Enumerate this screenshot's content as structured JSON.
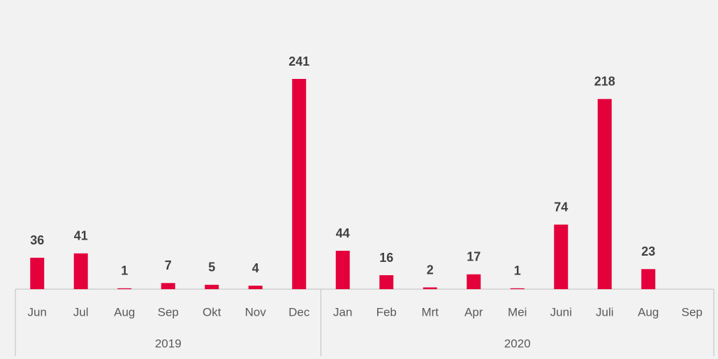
{
  "chart_data": {
    "type": "bar",
    "color": "#e4003b",
    "groups": [
      {
        "name": "2019",
        "categories": [
          "Jun",
          "Jul",
          "Aug",
          "Sep",
          "Okt",
          "Nov",
          "Dec"
        ],
        "values": [
          36,
          41,
          1,
          7,
          5,
          4,
          241
        ]
      },
      {
        "name": "2020",
        "categories": [
          "Jan",
          "Feb",
          "Mrt",
          "Apr",
          "Mei",
          "Juni",
          "Juli",
          "Aug",
          "Sep"
        ],
        "values": [
          44,
          16,
          2,
          17,
          1,
          74,
          218,
          23,
          null
        ]
      }
    ]
  }
}
